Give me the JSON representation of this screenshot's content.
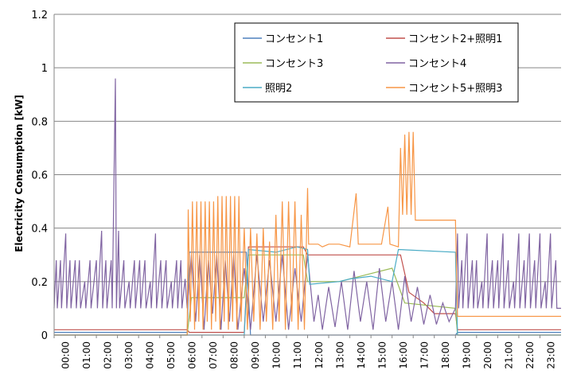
{
  "chart_data": {
    "type": "line",
    "ylabel": "Electricity  Consumption [kW]",
    "ylim": [
      0,
      1.2
    ],
    "yticks": [
      "0",
      "0.2",
      "0.4",
      "0.6",
      "0.8",
      "1",
      "1.2"
    ],
    "grid": "horizontal",
    "legend_position": "top-right",
    "x_ticks": [
      "00:00",
      "01:00",
      "02:00",
      "03:00",
      "04:00",
      "05:00",
      "06:00",
      "07:00",
      "08:00",
      "09:00",
      "10:00",
      "11:00",
      "12:00",
      "13:00",
      "14:00",
      "15:00",
      "16:00",
      "17:00",
      "18:00",
      "19:00",
      "20:00",
      "21:00",
      "22:00",
      "23:00"
    ],
    "series": [
      {
        "name": "コンセント1",
        "color": "#4F81BD",
        "points": [
          [
            0,
            0.01
          ],
          [
            6.3,
            0.01
          ],
          [
            6.4,
            0.31
          ],
          [
            9.1,
            0.31
          ],
          [
            9.3,
            0.0
          ],
          [
            19.0,
            0.0
          ],
          [
            19.1,
            0.01
          ],
          [
            24,
            0.01
          ]
        ]
      },
      {
        "name": "コンセント2+照明1",
        "color": "#C0504D",
        "points": [
          [
            0,
            0.02
          ],
          [
            6.3,
            0.02
          ],
          [
            6.4,
            0.01
          ],
          [
            9.0,
            0.01
          ],
          [
            9.2,
            0.33
          ],
          [
            11.8,
            0.33
          ],
          [
            12.0,
            0.3
          ],
          [
            16.4,
            0.3
          ],
          [
            16.8,
            0.16
          ],
          [
            17.5,
            0.12
          ],
          [
            18.0,
            0.08
          ],
          [
            19.0,
            0.08
          ],
          [
            19.1,
            0.02
          ],
          [
            24,
            0.02
          ]
        ]
      },
      {
        "name": "コンセント3",
        "color": "#9BBB59",
        "points": [
          [
            0,
            0.0
          ],
          [
            6.3,
            0.0
          ],
          [
            6.5,
            0.14
          ],
          [
            9.0,
            0.14
          ],
          [
            9.2,
            0.3
          ],
          [
            11.8,
            0.3
          ],
          [
            12.0,
            0.2
          ],
          [
            13.5,
            0.2
          ],
          [
            14.5,
            0.22
          ],
          [
            16.0,
            0.25
          ],
          [
            16.6,
            0.12
          ],
          [
            19.0,
            0.1
          ],
          [
            19.1,
            0.0
          ],
          [
            24,
            0.0
          ]
        ]
      },
      {
        "name": "コンセント4",
        "color": "#8064A2",
        "points": [
          [
            0,
            0.1
          ],
          [
            0.1,
            0.28
          ],
          [
            0.15,
            0.1
          ],
          [
            0.3,
            0.28
          ],
          [
            0.35,
            0.1
          ],
          [
            0.55,
            0.38
          ],
          [
            0.6,
            0.1
          ],
          [
            0.75,
            0.28
          ],
          [
            0.8,
            0.1
          ],
          [
            1.0,
            0.28
          ],
          [
            1.05,
            0.1
          ],
          [
            1.2,
            0.28
          ],
          [
            1.25,
            0.1
          ],
          [
            1.45,
            0.2
          ],
          [
            1.5,
            0.1
          ],
          [
            1.7,
            0.28
          ],
          [
            1.75,
            0.1
          ],
          [
            2.0,
            0.28
          ],
          [
            2.05,
            0.1
          ],
          [
            2.25,
            0.39
          ],
          [
            2.3,
            0.1
          ],
          [
            2.45,
            0.28
          ],
          [
            2.5,
            0.1
          ],
          [
            2.7,
            0.28
          ],
          [
            2.75,
            0.1
          ],
          [
            2.9,
            0.96
          ],
          [
            2.95,
            0.1
          ],
          [
            3.05,
            0.39
          ],
          [
            3.1,
            0.1
          ],
          [
            3.3,
            0.28
          ],
          [
            3.35,
            0.1
          ],
          [
            3.55,
            0.2
          ],
          [
            3.6,
            0.1
          ],
          [
            3.8,
            0.28
          ],
          [
            3.85,
            0.1
          ],
          [
            4.05,
            0.28
          ],
          [
            4.1,
            0.1
          ],
          [
            4.3,
            0.28
          ],
          [
            4.35,
            0.1
          ],
          [
            4.55,
            0.2
          ],
          [
            4.6,
            0.1
          ],
          [
            4.8,
            0.38
          ],
          [
            4.85,
            0.1
          ],
          [
            5.05,
            0.28
          ],
          [
            5.1,
            0.1
          ],
          [
            5.3,
            0.28
          ],
          [
            5.35,
            0.1
          ],
          [
            5.55,
            0.2
          ],
          [
            5.6,
            0.1
          ],
          [
            5.8,
            0.28
          ],
          [
            5.85,
            0.1
          ],
          [
            6.0,
            0.28
          ],
          [
            6.05,
            0.1
          ],
          [
            6.2,
            0.21
          ],
          [
            6.3,
            0.1
          ],
          [
            6.5,
            0.3
          ],
          [
            6.7,
            0.05
          ],
          [
            6.9,
            0.3
          ],
          [
            7.1,
            0.02
          ],
          [
            7.3,
            0.28
          ],
          [
            7.5,
            0.08
          ],
          [
            7.7,
            0.3
          ],
          [
            7.9,
            0.02
          ],
          [
            8.1,
            0.28
          ],
          [
            8.3,
            0.05
          ],
          [
            8.5,
            0.3
          ],
          [
            8.7,
            0.02
          ],
          [
            9.0,
            0.25
          ],
          [
            9.3,
            0.02
          ],
          [
            9.6,
            0.3
          ],
          [
            9.9,
            0.05
          ],
          [
            10.2,
            0.28
          ],
          [
            10.5,
            0.05
          ],
          [
            10.8,
            0.3
          ],
          [
            11.1,
            0.02
          ],
          [
            11.4,
            0.25
          ],
          [
            11.7,
            0.05
          ],
          [
            12.0,
            0.3
          ],
          [
            12.3,
            0.05
          ],
          [
            12.5,
            0.15
          ],
          [
            12.7,
            0.02
          ],
          [
            13.0,
            0.18
          ],
          [
            13.3,
            0.03
          ],
          [
            13.6,
            0.2
          ],
          [
            13.9,
            0.02
          ],
          [
            14.2,
            0.24
          ],
          [
            14.5,
            0.05
          ],
          [
            14.8,
            0.2
          ],
          [
            15.1,
            0.02
          ],
          [
            15.4,
            0.25
          ],
          [
            15.7,
            0.05
          ],
          [
            16.0,
            0.2
          ],
          [
            16.3,
            0.02
          ],
          [
            16.6,
            0.22
          ],
          [
            16.9,
            0.05
          ],
          [
            17.2,
            0.18
          ],
          [
            17.5,
            0.04
          ],
          [
            17.8,
            0.15
          ],
          [
            18.1,
            0.04
          ],
          [
            18.4,
            0.12
          ],
          [
            18.7,
            0.05
          ],
          [
            19.0,
            0.1
          ],
          [
            19.1,
            0.38
          ],
          [
            19.15,
            0.1
          ],
          [
            19.3,
            0.28
          ],
          [
            19.35,
            0.1
          ],
          [
            19.55,
            0.38
          ],
          [
            19.6,
            0.1
          ],
          [
            19.8,
            0.28
          ],
          [
            19.85,
            0.1
          ],
          [
            20.0,
            0.28
          ],
          [
            20.05,
            0.1
          ],
          [
            20.25,
            0.2
          ],
          [
            20.3,
            0.1
          ],
          [
            20.5,
            0.38
          ],
          [
            20.55,
            0.1
          ],
          [
            20.75,
            0.28
          ],
          [
            20.8,
            0.1
          ],
          [
            21.0,
            0.28
          ],
          [
            21.05,
            0.1
          ],
          [
            21.25,
            0.38
          ],
          [
            21.3,
            0.1
          ],
          [
            21.5,
            0.28
          ],
          [
            21.55,
            0.1
          ],
          [
            21.75,
            0.2
          ],
          [
            21.8,
            0.1
          ],
          [
            22.0,
            0.38
          ],
          [
            22.05,
            0.1
          ],
          [
            22.25,
            0.28
          ],
          [
            22.3,
            0.1
          ],
          [
            22.5,
            0.38
          ],
          [
            22.55,
            0.1
          ],
          [
            22.75,
            0.28
          ],
          [
            22.8,
            0.1
          ],
          [
            23.0,
            0.38
          ],
          [
            23.05,
            0.1
          ],
          [
            23.25,
            0.2
          ],
          [
            23.3,
            0.1
          ],
          [
            23.5,
            0.38
          ],
          [
            23.55,
            0.1
          ],
          [
            23.75,
            0.28
          ],
          [
            23.8,
            0.1
          ],
          [
            24,
            0.1
          ]
        ]
      },
      {
        "name": "照明2",
        "color": "#4BACC6",
        "points": [
          [
            0,
            0.0
          ],
          [
            6.3,
            0.0
          ],
          [
            6.5,
            0.0
          ],
          [
            9.0,
            0.0
          ],
          [
            9.2,
            0.32
          ],
          [
            10.5,
            0.31
          ],
          [
            11.5,
            0.33
          ],
          [
            12.0,
            0.32
          ],
          [
            12.1,
            0.19
          ],
          [
            13.5,
            0.2
          ],
          [
            14.0,
            0.21
          ],
          [
            15.0,
            0.22
          ],
          [
            16.0,
            0.2
          ],
          [
            16.3,
            0.32
          ],
          [
            19.0,
            0.31
          ],
          [
            19.1,
            0.0
          ],
          [
            24,
            0.0
          ]
        ]
      },
      {
        "name": "コンセント5+照明3",
        "color": "#F79646",
        "points": [
          [
            0,
            0.0
          ],
          [
            6.3,
            0.0
          ],
          [
            6.35,
            0.47
          ],
          [
            6.45,
            0.05
          ],
          [
            6.55,
            0.5
          ],
          [
            6.65,
            0.02
          ],
          [
            6.75,
            0.5
          ],
          [
            6.85,
            0.05
          ],
          [
            6.95,
            0.5
          ],
          [
            7.05,
            0.02
          ],
          [
            7.15,
            0.5
          ],
          [
            7.25,
            0.05
          ],
          [
            7.35,
            0.5
          ],
          [
            7.45,
            0.02
          ],
          [
            7.55,
            0.5
          ],
          [
            7.65,
            0.05
          ],
          [
            7.75,
            0.52
          ],
          [
            7.85,
            0.02
          ],
          [
            7.95,
            0.52
          ],
          [
            8.05,
            0.05
          ],
          [
            8.15,
            0.52
          ],
          [
            8.25,
            0.02
          ],
          [
            8.35,
            0.52
          ],
          [
            8.45,
            0.05
          ],
          [
            8.55,
            0.52
          ],
          [
            8.65,
            0.02
          ],
          [
            8.75,
            0.52
          ],
          [
            8.85,
            0.05
          ],
          [
            9.0,
            0.4
          ],
          [
            9.15,
            0.02
          ],
          [
            9.3,
            0.4
          ],
          [
            9.45,
            0.05
          ],
          [
            9.6,
            0.38
          ],
          [
            9.75,
            0.02
          ],
          [
            9.9,
            0.4
          ],
          [
            10.05,
            0.05
          ],
          [
            10.2,
            0.35
          ],
          [
            10.35,
            0.02
          ],
          [
            10.5,
            0.45
          ],
          [
            10.65,
            0.05
          ],
          [
            10.8,
            0.5
          ],
          [
            10.95,
            0.02
          ],
          [
            11.1,
            0.5
          ],
          [
            11.25,
            0.05
          ],
          [
            11.4,
            0.5
          ],
          [
            11.55,
            0.02
          ],
          [
            11.7,
            0.45
          ],
          [
            11.85,
            0.02
          ],
          [
            12.0,
            0.55
          ],
          [
            12.05,
            0.34
          ],
          [
            12.5,
            0.34
          ],
          [
            12.7,
            0.33
          ],
          [
            13.0,
            0.34
          ],
          [
            13.5,
            0.34
          ],
          [
            14.0,
            0.33
          ],
          [
            14.3,
            0.53
          ],
          [
            14.4,
            0.34
          ],
          [
            15.0,
            0.34
          ],
          [
            15.5,
            0.34
          ],
          [
            15.8,
            0.48
          ],
          [
            15.9,
            0.34
          ],
          [
            16.3,
            0.33
          ],
          [
            16.4,
            0.7
          ],
          [
            16.5,
            0.45
          ],
          [
            16.6,
            0.75
          ],
          [
            16.7,
            0.45
          ],
          [
            16.8,
            0.76
          ],
          [
            16.9,
            0.45
          ],
          [
            17.0,
            0.76
          ],
          [
            17.1,
            0.43
          ],
          [
            19.0,
            0.43
          ],
          [
            19.1,
            0.07
          ],
          [
            24,
            0.07
          ]
        ]
      }
    ]
  }
}
